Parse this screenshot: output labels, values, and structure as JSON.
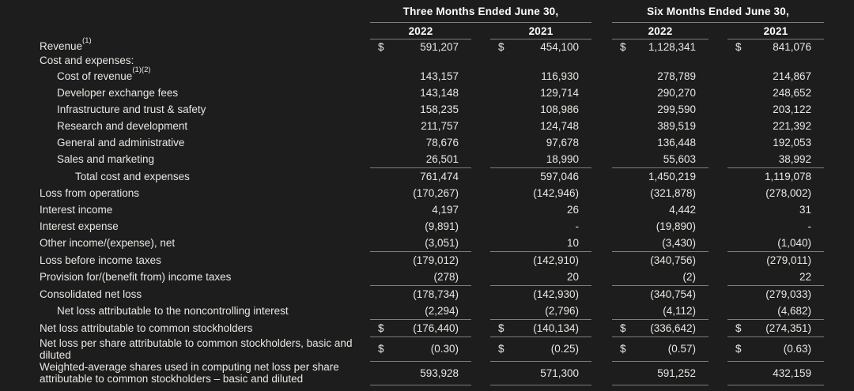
{
  "colors": {
    "background": "#1d1d1d",
    "body_text": "#eae7e2",
    "header_text": "#ffffff",
    "rule_line": "#7d7d7d"
  },
  "table": {
    "currency_symbol": "$",
    "groups": [
      {
        "label": "Three Months Ended June 30,",
        "years": [
          "2022",
          "2021"
        ]
      },
      {
        "label": "Six Months Ended June 30,",
        "years": [
          "2022",
          "2021"
        ]
      }
    ],
    "rows": [
      {
        "label": "Revenue",
        "sup": "(1)",
        "indent": 0,
        "dollar": true,
        "tight": true,
        "values": [
          "591,207",
          "454,100",
          "1,128,341",
          "841,076"
        ]
      },
      {
        "label": "Cost and expenses:",
        "indent": 0,
        "tight": true,
        "values": null
      },
      {
        "label": "Cost of revenue",
        "sup": "(1)(2)",
        "indent": 1,
        "values": [
          "143,157",
          "116,930",
          "278,789",
          "214,867"
        ]
      },
      {
        "label": "Developer exchange fees",
        "indent": 1,
        "values": [
          "143,148",
          "129,714",
          "290,270",
          "248,652"
        ]
      },
      {
        "label": "Infrastructure and trust & safety",
        "indent": 1,
        "values": [
          "158,235",
          "108,986",
          "299,590",
          "203,122"
        ]
      },
      {
        "label": "Research and development",
        "indent": 1,
        "values": [
          "211,757",
          "124,748",
          "389,519",
          "221,392"
        ]
      },
      {
        "label": "General and administrative",
        "indent": 1,
        "values": [
          "78,676",
          "97,678",
          "136,448",
          "192,053"
        ]
      },
      {
        "label": "Sales and marketing",
        "indent": 1,
        "border_bottom": true,
        "values": [
          "26,501",
          "18,990",
          "55,603",
          "38,992"
        ]
      },
      {
        "label": "Total cost and expenses",
        "indent": 2,
        "values": [
          "761,474",
          "597,046",
          "1,450,219",
          "1,119,078"
        ]
      },
      {
        "label": "Loss from operations",
        "indent": 0,
        "values": [
          "(170,267)",
          "(142,946)",
          "(321,878)",
          "(278,002)"
        ]
      },
      {
        "label": "Interest income",
        "indent": 0,
        "values": [
          "4,197",
          "26",
          "4,442",
          "31"
        ]
      },
      {
        "label": "Interest expense",
        "indent": 0,
        "values": [
          "(9,891)",
          "-",
          "(19,890)",
          "-"
        ]
      },
      {
        "label": "Other income/(expense), net",
        "indent": 0,
        "border_bottom": true,
        "values": [
          "(3,051)",
          "10",
          "(3,430)",
          "(1,040)"
        ]
      },
      {
        "label": "Loss before income taxes",
        "indent": 0,
        "values": [
          "(179,012)",
          "(142,910)",
          "(340,756)",
          "(279,011)"
        ]
      },
      {
        "label": "Provision for/(benefit from) income taxes",
        "indent": 0,
        "border_bottom": true,
        "values": [
          "(278)",
          "20",
          "(2)",
          "22"
        ]
      },
      {
        "label": "Consolidated net loss",
        "indent": 0,
        "values": [
          "(178,734)",
          "(142,930)",
          "(340,754)",
          "(279,033)"
        ]
      },
      {
        "label": "Net loss attributable to the noncontrolling interest",
        "indent": 1,
        "border_bottom": true,
        "values": [
          "(2,294)",
          "(2,796)",
          "(4,112)",
          "(4,682)"
        ]
      },
      {
        "label": "Net loss attributable to common stockholders",
        "indent": 0,
        "dollar": true,
        "border_bottom": true,
        "values": [
          "(176,440)",
          "(140,134)",
          "(336,642)",
          "(274,351)"
        ]
      },
      {
        "label": "Net loss per share attributable to common stockholders, basic and diluted",
        "indent": 0,
        "dollar": true,
        "border_bottom": true,
        "values": [
          "(0.30)",
          "(0.25)",
          "(0.57)",
          "(0.63)"
        ]
      },
      {
        "label": "Weighted-average shares used in computing net loss per share attributable to common stockholders – basic and diluted",
        "indent": 0,
        "border_bottom": true,
        "values": [
          "593,928",
          "571,300",
          "591,252",
          "432,159"
        ]
      }
    ]
  }
}
